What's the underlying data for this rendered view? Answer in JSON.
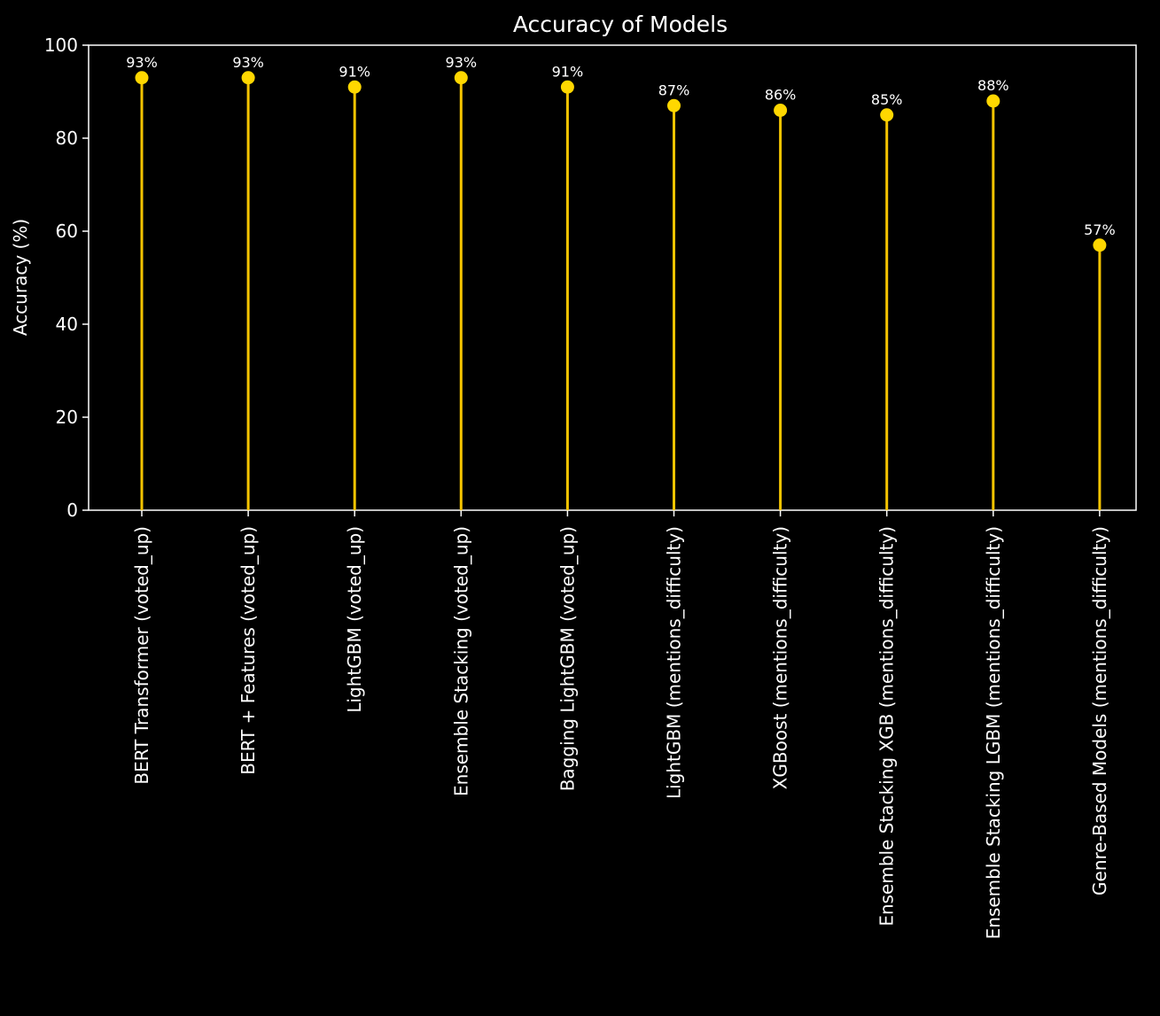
{
  "chart_data": {
    "type": "lollipop",
    "title": "Accuracy of Models",
    "xlabel": "",
    "ylabel": "Accuracy (%)",
    "ylim": [
      0,
      100
    ],
    "yticks": [
      0,
      20,
      40,
      60,
      80,
      100
    ],
    "grid": false,
    "colors": {
      "background": "#000000",
      "axes": "#ffffff",
      "text": "#ffffff",
      "stem": "#f5c400",
      "marker": "#ffd700"
    },
    "categories": [
      "BERT Transformer (voted_up)",
      "BERT + Features (voted_up)",
      "LightGBM (voted_up)",
      "Ensemble Stacking (voted_up)",
      "Bagging LightGBM (voted_up)",
      "LightGBM (mentions_difficulty)",
      "XGBoost (mentions_difficulty)",
      "Ensemble Stacking XGB (mentions_difficulty)",
      "Ensemble Stacking LGBM (mentions_difficulty)",
      "Genre-Based Models (mentions_difficulty)"
    ],
    "values": [
      93,
      93,
      91,
      93,
      91,
      87,
      86,
      85,
      88,
      57
    ],
    "data_labels": [
      "93%",
      "93%",
      "91%",
      "93%",
      "91%",
      "87%",
      "86%",
      "85%",
      "88%",
      "57%"
    ]
  }
}
